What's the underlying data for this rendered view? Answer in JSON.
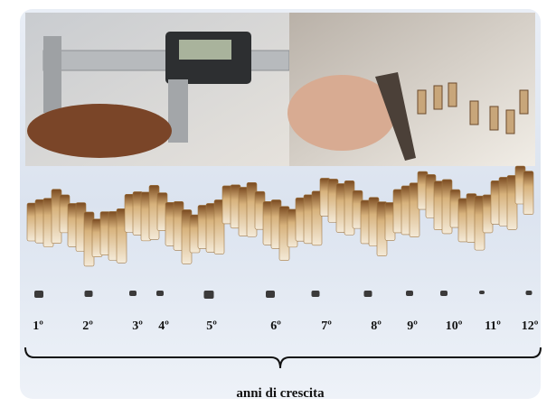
{
  "labels": [
    "1º",
    "2º",
    "3º",
    "4º",
    "5º",
    "6º",
    "7º",
    "8º",
    "9º",
    "10º",
    "11º",
    "12º"
  ],
  "caption": "anni di crescita"
}
